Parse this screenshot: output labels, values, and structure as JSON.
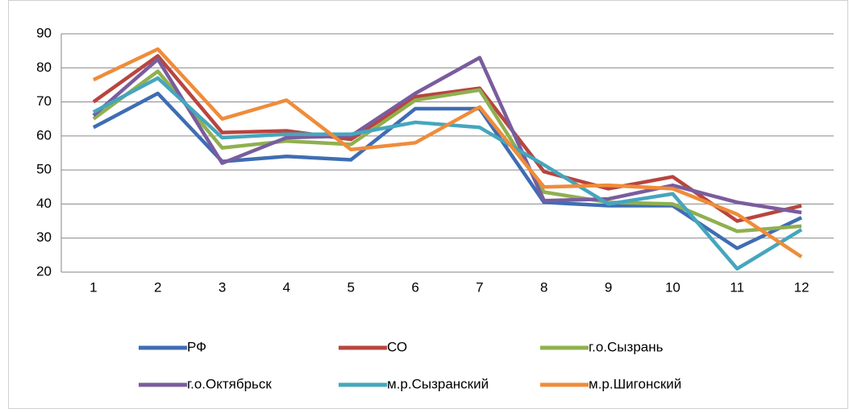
{
  "chart_data": {
    "type": "line",
    "categories": [
      "1",
      "2",
      "3",
      "4",
      "5",
      "6",
      "7",
      "8",
      "9",
      "10",
      "11",
      "12"
    ],
    "series": [
      {
        "name": "РФ",
        "color": "#3f6db3",
        "values": [
          62.5,
          72.5,
          52.5,
          54,
          53,
          68,
          68,
          40.5,
          39.5,
          39.5,
          27,
          36
        ]
      },
      {
        "name": "СО",
        "color": "#b8453f",
        "values": [
          70,
          83.5,
          61,
          61.5,
          59,
          71.5,
          74,
          49.5,
          44.5,
          48,
          35,
          39.5
        ]
      },
      {
        "name": "г.о.Сызрань",
        "color": "#8fb04f",
        "values": [
          65,
          79,
          56.5,
          58.5,
          57.5,
          70.5,
          73.5,
          43.5,
          40.5,
          40,
          32,
          33.5
        ]
      },
      {
        "name": "г.о.Октябрьск",
        "color": "#7a5c9e",
        "values": [
          66,
          82.5,
          52,
          59.5,
          60,
          72.5,
          83,
          41,
          41.5,
          45.5,
          40.5,
          37.5
        ]
      },
      {
        "name": "м.р.Сызранский",
        "color": "#45a6bd",
        "values": [
          67,
          77,
          59.5,
          60.5,
          60.5,
          64,
          62.5,
          51.5,
          40,
          43,
          21,
          32.5
        ]
      },
      {
        "name": "м.р.Шигонский",
        "color": "#ef8c3a",
        "values": [
          76.5,
          85.5,
          65,
          70.5,
          56,
          58,
          68.5,
          45,
          45.5,
          44.5,
          37,
          24.5
        ]
      }
    ],
    "ylim": [
      20,
      90
    ],
    "yticks": [
      20,
      30,
      40,
      50,
      60,
      70,
      80,
      90
    ],
    "grid": true,
    "legend": "bottom"
  }
}
